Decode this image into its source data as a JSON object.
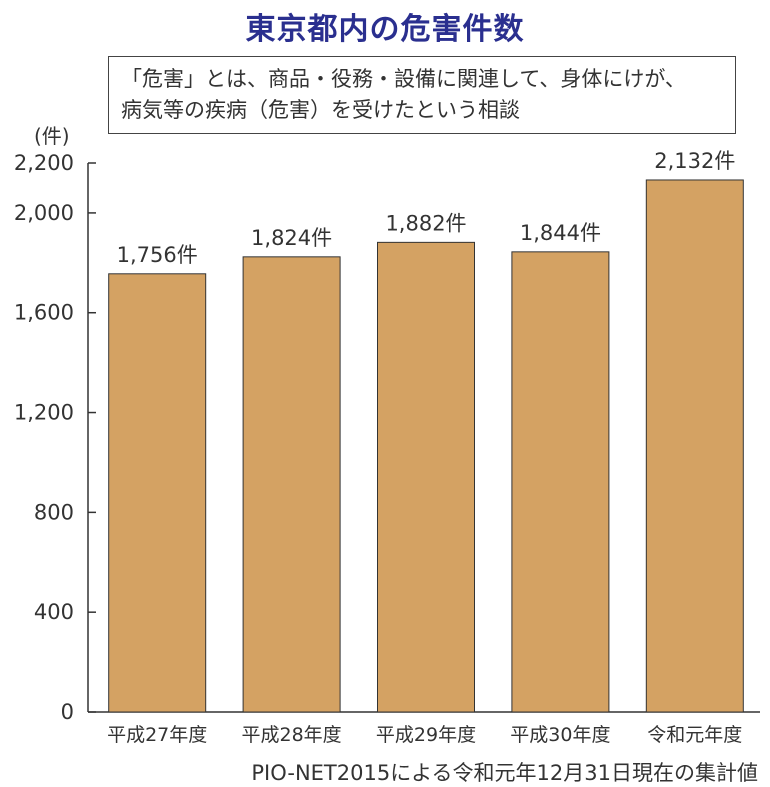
{
  "chart_data": {
    "type": "bar",
    "title": "東京都内の危害件数",
    "note_lines": [
      "「危害」とは、商品・役務・設備に関連して、身体にけが、",
      "病気等の疾病（危害）を受けたという相談"
    ],
    "unit_label": "(件)",
    "categories": [
      "平成27年度",
      "平成28年度",
      "平成29年度",
      "平成30年度",
      "令和元年度"
    ],
    "values": [
      1756,
      1824,
      1882,
      1844,
      2132
    ],
    "data_labels": [
      "1,756件",
      "1,824件",
      "1,882件",
      "1,844件",
      "2,132件"
    ],
    "ylim": [
      0,
      2200
    ],
    "y_ticks": [
      0,
      400,
      800,
      1200,
      1600,
      2000,
      2200
    ],
    "y_tick_labels": [
      "0",
      "400",
      "800",
      "1,200",
      "1,600",
      "2,000",
      "2,200"
    ],
    "bar_color": "#d4a263",
    "bar_edge_color": "#333333",
    "grid": false,
    "footnote": "PIO-NET2015による令和元年12月31日現在の集計値"
  },
  "colors": {
    "title": "#2a2f8f"
  }
}
